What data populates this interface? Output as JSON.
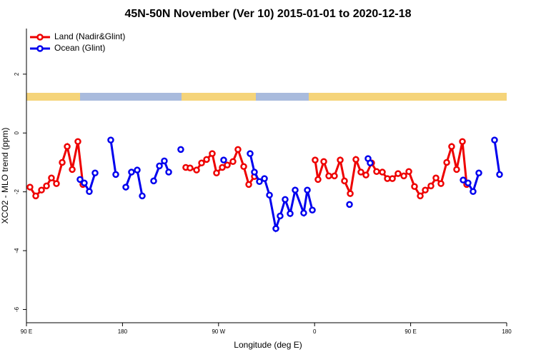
{
  "chart_data": {
    "type": "line",
    "title": "45N-50N November (Ver 10)   2015-01-01 to 2020-12-18",
    "x_label": "Longitude (deg E)",
    "y_label": "XCO2 - MLO trend (ppm)",
    "xlim": [
      90,
      540
    ],
    "ylim": [
      -6.45,
      3.55
    ],
    "xticks": [
      {
        "value": 90,
        "label": "90 E"
      },
      180,
      {
        "value": 270,
        "label": "90 W"
      },
      {
        "value": 360,
        "label": "0"
      },
      {
        "value": 450,
        "label": "90 E"
      },
      {
        "value": 540,
        "label": "180"
      }
    ],
    "yticks": [
      -6,
      -4,
      -2,
      0,
      2
    ],
    "legend": "top-left",
    "series": [
      {
        "name": "Land (Nadir&Glint)",
        "color": "#ee0000",
        "x": [
          93.3,
          98.7,
          104.1,
          108.8,
          113.4,
          118.1,
          123.5,
          128.2,
          132.9,
          138.2,
          142.9,
          null,
          239.3,
          243.3,
          249.4,
          254.1,
          258.8,
          264.1,
          268.1,
          273.5,
          278.2,
          283.5,
          288.2,
          293.6,
          298.3,
          303.6,
          null,
          360.5,
          363.2,
          368.6,
          373.3,
          378.6,
          384.0,
          388.0,
          393.4,
          398.7,
          403.4,
          408.1,
          413.4,
          418.1,
          423.5,
          428.2,
          432.9,
          438.2,
          443.6,
          448.3,
          453.6,
          459.0,
          463.7,
          469.0,
          473.7,
          478.4,
          483.8,
          488.4,
          493.1,
          498.5,
          502.5
        ],
        "values": [
          -1.84,
          -2.14,
          -1.94,
          -1.8,
          -1.53,
          -1.72,
          -1.0,
          -0.46,
          -1.24,
          -0.29,
          -1.75,
          null,
          -1.17,
          -1.19,
          -1.26,
          -1.02,
          -0.9,
          -0.7,
          -1.36,
          -1.17,
          -1.09,
          -0.97,
          -0.56,
          -1.14,
          -1.75,
          -1.48,
          null,
          -0.92,
          -1.58,
          -0.97,
          -1.46,
          -1.46,
          -0.92,
          -1.63,
          -2.06,
          -0.9,
          -1.33,
          -1.43,
          -1.02,
          -1.31,
          -1.33,
          -1.55,
          -1.55,
          -1.38,
          -1.46,
          -1.31,
          -1.82,
          -2.14,
          -1.94,
          -1.8,
          -1.53,
          -1.72,
          -1.0,
          -0.46,
          -1.24,
          -0.29,
          -1.75
        ]
      },
      {
        "name": "Ocean (Glint)",
        "color": "#0000ee",
        "x": [
          140.2,
          144.2,
          148.9,
          154.3,
          null,
          169.0,
          173.7,
          null,
          183.1,
          188.4,
          193.8,
          198.5,
          null,
          209.2,
          214.6,
          219.2,
          223.3,
          null,
          234.6,
          null,
          274.8,
          null,
          299.6,
          303.6,
          308.3,
          313.0,
          317.7,
          323.7,
          327.7,
          332.4,
          337.1,
          341.8,
          349.8,
          353.2,
          357.9,
          null,
          392.7,
          null,
          410.1,
          412.1,
          null,
          499.2,
          503.8,
          508.5,
          513.9,
          null,
          528.6,
          533.3
        ],
        "values": [
          -1.58,
          -1.7,
          -1.99,
          -1.36,
          null,
          -0.24,
          -1.41,
          null,
          -1.84,
          -1.33,
          -1.26,
          -2.14,
          null,
          -1.63,
          -1.12,
          -0.95,
          -1.33,
          null,
          -0.56,
          null,
          -0.92,
          null,
          -0.7,
          -1.33,
          -1.65,
          -1.55,
          -2.11,
          -3.25,
          -2.82,
          -2.26,
          -2.74,
          -1.94,
          -2.72,
          -1.94,
          -2.62,
          null,
          -2.43,
          null,
          -0.87,
          -1.02,
          null,
          -1.6,
          -1.7,
          -1.99,
          -1.36,
          null,
          -0.24,
          -1.41
        ]
      }
    ]
  }
}
